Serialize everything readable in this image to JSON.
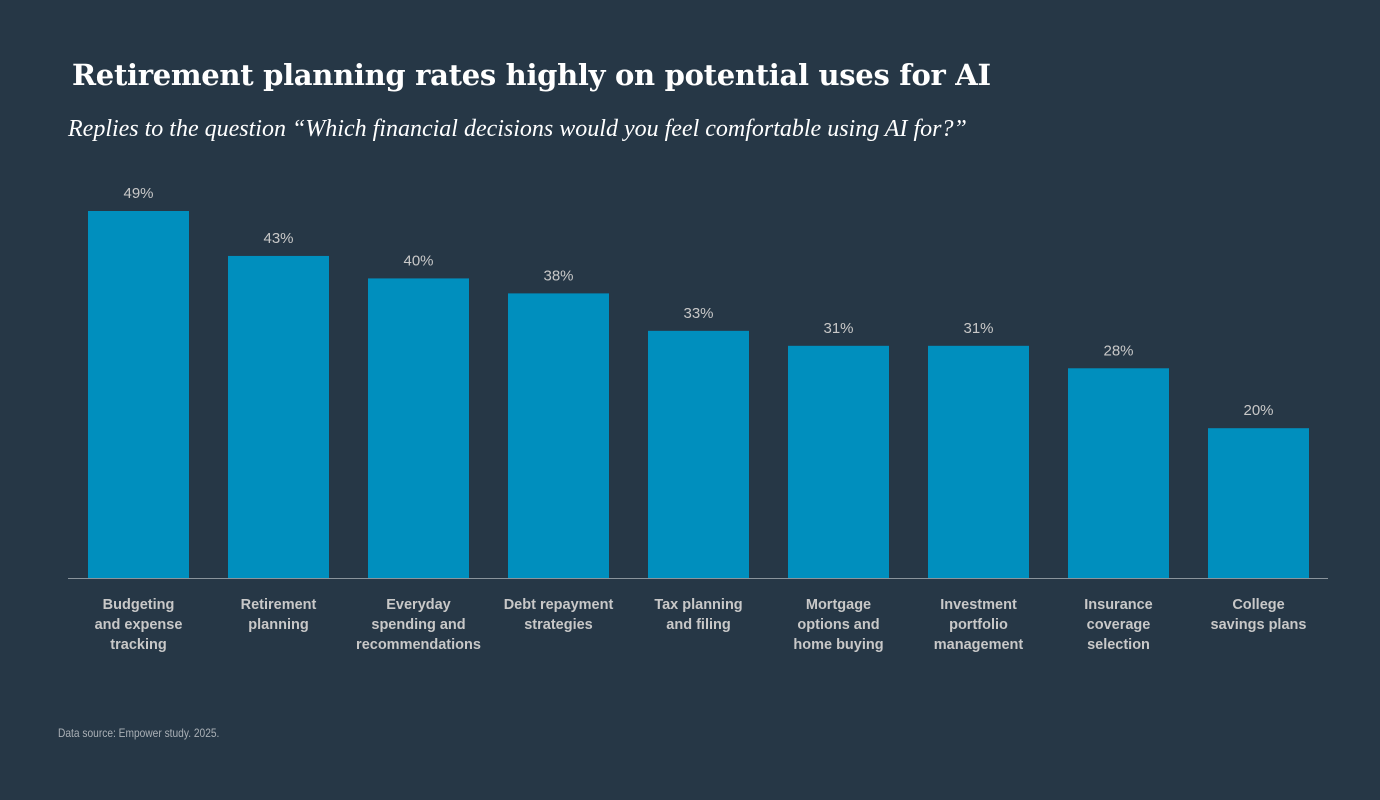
{
  "chart_data": {
    "type": "bar",
    "title": "Retirement planning rates highly on potential uses for AI",
    "subtitle": "Replies to the question “Which financial decisions would you feel comfortable using AI for?”",
    "categories": [
      [
        "Budgeting",
        "and expense",
        "tracking"
      ],
      [
        "Retirement",
        "planning"
      ],
      [
        "Everyday",
        "spending and",
        "recommendations"
      ],
      [
        "Debt repayment",
        "strategies"
      ],
      [
        "Tax planning",
        "and filing"
      ],
      [
        "Mortgage",
        "options and",
        "home buying"
      ],
      [
        "Investment",
        "portfolio",
        "management"
      ],
      [
        "Insurance",
        "coverage",
        "selection"
      ],
      [
        "College",
        "savings plans"
      ]
    ],
    "values": [
      49,
      43,
      40,
      38,
      33,
      31,
      31,
      28,
      20
    ],
    "value_labels": [
      "49%",
      "43%",
      "40%",
      "38%",
      "33%",
      "31%",
      "31%",
      "28%",
      "20%"
    ],
    "ylim": [
      0,
      49
    ],
    "grid": false,
    "xlabel": "",
    "ylabel": "",
    "source": "Data source: Empower study. 2025.",
    "colors": {
      "bar": "#008fbe",
      "background": "#263746",
      "axis": "#8a949c"
    }
  }
}
